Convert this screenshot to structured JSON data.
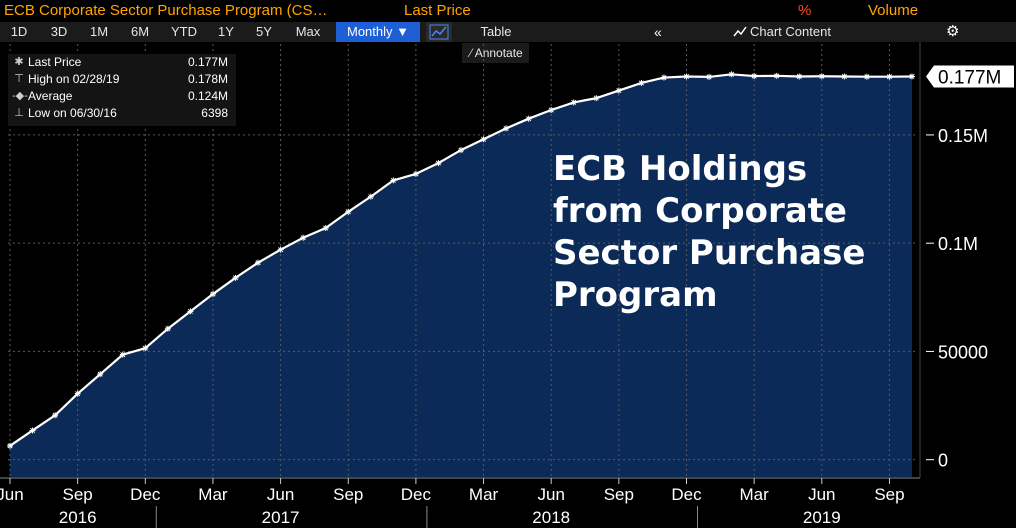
{
  "header": {
    "title": "ECB Corporate Sector Purchase Program (CS…",
    "last_price_label": "Last Price",
    "pct_label": "%",
    "volume_label": "Volume"
  },
  "toolbar": {
    "periods": [
      "1D",
      "3D",
      "1M",
      "6M",
      "YTD",
      "1Y",
      "5Y",
      "Max"
    ],
    "frequency": "Monthly ▼",
    "table_label": "Table",
    "chart_content_label": "Chart Content",
    "annotate_label": "Annotate"
  },
  "legend": {
    "rows": [
      {
        "label": "Last Price",
        "value": "0.177M"
      },
      {
        "label": "High on 02/28/19",
        "value": "0.178M"
      },
      {
        "label": "Average",
        "value": "0.124M"
      },
      {
        "label": "Low on 06/30/16",
        "value": "6398"
      }
    ]
  },
  "annotation": {
    "lines": [
      "ECB Holdings",
      "from Corporate",
      "Sector Purchase",
      "Program"
    ]
  },
  "colors": {
    "fill": "#0b2a57",
    "line": "#ffffff",
    "accent_orange": "#ffa500",
    "pct_red": "#ff4a1f",
    "active_button": "#1f5fd6"
  },
  "chart_data": {
    "type": "area",
    "title": "ECB Corporate Sector Purchase Program (CS…",
    "x": [
      "2016-06",
      "2016-07",
      "2016-08",
      "2016-09",
      "2016-10",
      "2016-11",
      "2016-12",
      "2017-01",
      "2017-02",
      "2017-03",
      "2017-04",
      "2017-05",
      "2017-06",
      "2017-07",
      "2017-08",
      "2017-09",
      "2017-10",
      "2017-11",
      "2017-12",
      "2018-01",
      "2018-02",
      "2018-03",
      "2018-04",
      "2018-05",
      "2018-06",
      "2018-07",
      "2018-08",
      "2018-09",
      "2018-10",
      "2018-11",
      "2018-12",
      "2019-01",
      "2019-02",
      "2019-03",
      "2019-04",
      "2019-05",
      "2019-06",
      "2019-07",
      "2019-08",
      "2019-09",
      "2019-10"
    ],
    "values": [
      6398,
      13500,
      20500,
      30500,
      39500,
      48500,
      51500,
      60500,
      68500,
      76500,
      84000,
      91000,
      97000,
      102500,
      107000,
      114500,
      121500,
      129000,
      132000,
      137000,
      143000,
      148000,
      153000,
      157500,
      161500,
      165000,
      167000,
      170500,
      174000,
      176500,
      177000,
      176800,
      178000,
      177200,
      177300,
      177000,
      177100,
      177000,
      176900,
      176900,
      177000
    ],
    "ylim": [
      -8000,
      192000
    ],
    "y_ticks": [
      0,
      50000,
      100000,
      150000
    ],
    "y_tick_labels": [
      "0",
      "50000",
      "0.1M",
      "0.15M"
    ],
    "last_value_label": "0.177M",
    "x_month_ticks": [
      {
        "label": "Jun",
        "x": "2016-06"
      },
      {
        "label": "Sep",
        "x": "2016-09"
      },
      {
        "label": "Dec",
        "x": "2016-12"
      },
      {
        "label": "Mar",
        "x": "2017-03"
      },
      {
        "label": "Jun",
        "x": "2017-06"
      },
      {
        "label": "Sep",
        "x": "2017-09"
      },
      {
        "label": "Dec",
        "x": "2017-12"
      },
      {
        "label": "Mar",
        "x": "2018-03"
      },
      {
        "label": "Jun",
        "x": "2018-06"
      },
      {
        "label": "Sep",
        "x": "2018-09"
      },
      {
        "label": "Dec",
        "x": "2018-12"
      },
      {
        "label": "Mar",
        "x": "2019-03"
      },
      {
        "label": "Jun",
        "x": "2019-06"
      },
      {
        "label": "Sep",
        "x": "2019-09"
      }
    ],
    "x_year_labels": [
      {
        "label": "2016",
        "x": "2016-09"
      },
      {
        "label": "2017",
        "x": "2017-06"
      },
      {
        "label": "2018",
        "x": "2018-06"
      },
      {
        "label": "2019",
        "x": "2019-06"
      }
    ],
    "year_boundaries": [
      "2016-12",
      "2017-12",
      "2018-12"
    ],
    "grid": true
  }
}
